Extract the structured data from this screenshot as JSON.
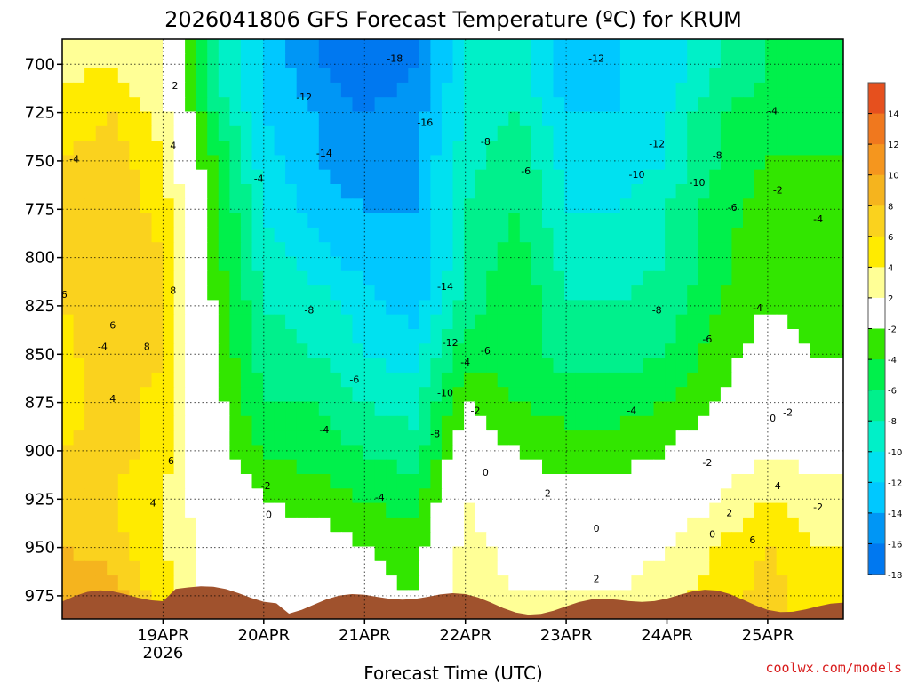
{
  "chart_data": {
    "type": "heatmap",
    "title": "2026041806 GFS Forecast Temperature (ºC) for KRUM",
    "xlabel": "Forecast Time (UTC)",
    "ylabel": "",
    "x_ticks": [
      {
        "label": "19APR",
        "sub": "2026",
        "day": 1
      },
      {
        "label": "20APR",
        "day": 2
      },
      {
        "label": "21APR",
        "day": 3
      },
      {
        "label": "22APR",
        "day": 4
      },
      {
        "label": "23APR",
        "day": 5
      },
      {
        "label": "24APR",
        "day": 6
      },
      {
        "label": "25APR",
        "day": 7
      }
    ],
    "xlim": [
      0.0,
      7.75
    ],
    "y_ticks": [
      700,
      725,
      750,
      775,
      800,
      825,
      850,
      875,
      900,
      925,
      950,
      975
    ],
    "ylim": [
      687,
      987
    ],
    "colorbar": {
      "labels": [
        "14",
        "12",
        "10",
        "8",
        "6",
        "4",
        "2",
        "-2",
        "-4",
        "-6",
        "-8",
        "-10",
        "-12",
        "-14",
        "-16",
        "-18"
      ],
      "colors": [
        "#e6501e",
        "#f0781e",
        "#f5961e",
        "#f5b41e",
        "#fad21e",
        "#ffeb00",
        "#ffff96",
        "#ffffff",
        "#32e600",
        "#00f04b",
        "#00f08c",
        "#00f0c8",
        "#00e1f0",
        "#00c8ff",
        "#0096f5",
        "#0078f0"
      ]
    },
    "temperature_grid": {
      "times": [
        0,
        0.5,
        1.0,
        1.5,
        2.0,
        2.5,
        3.0,
        3.5,
        4.0,
        4.5,
        5.0,
        5.5,
        6.0,
        6.5,
        7.0,
        7.5
      ],
      "levels": [
        700,
        725,
        750,
        775,
        800,
        825,
        850,
        875,
        900,
        925,
        950,
        975
      ],
      "values": [
        [
          3,
          4,
          2,
          -8,
          -12,
          -16,
          -18,
          -16,
          -10,
          -8,
          -14,
          -12,
          -12,
          -8,
          -6,
          -6
        ],
        [
          5,
          6,
          3,
          -6,
          -12,
          -14,
          -16,
          -15,
          -10,
          -8,
          -12,
          -12,
          -10,
          -6,
          -5,
          -5
        ],
        [
          6,
          7,
          4,
          -4,
          -11,
          -14,
          -15,
          -14,
          -9,
          -6,
          -11,
          -11,
          -10,
          -6,
          -4,
          -4
        ],
        [
          7,
          8,
          5,
          -3,
          -10,
          -13,
          -14,
          -14,
          -8,
          -6,
          -10,
          -10,
          -8,
          -5,
          -3,
          -4
        ],
        [
          6,
          8,
          6,
          -3,
          -9,
          -11,
          -13,
          -14,
          -8,
          -5,
          -9,
          -9,
          -8,
          -5,
          -2,
          -4
        ],
        [
          6,
          8,
          6,
          -2,
          -8,
          -9,
          -11,
          -13,
          -7,
          -4,
          -8,
          -8,
          -7,
          -4,
          -2,
          -3
        ],
        [
          5,
          8,
          6,
          -2,
          -7,
          -8,
          -10,
          -11,
          -5,
          -5,
          -7,
          -7,
          -6,
          -3,
          -1,
          -2
        ],
        [
          5,
          7,
          5,
          -1,
          -6,
          -6,
          -8,
          -9,
          -2,
          -4,
          -5,
          -5,
          -4,
          -2,
          0,
          -1
        ],
        [
          6,
          7,
          5,
          -1,
          -4,
          -5,
          -6,
          -7,
          0,
          -2,
          -3,
          -3,
          -2,
          0,
          2,
          1
        ],
        [
          7,
          6,
          4,
          0,
          -2,
          -3,
          -4,
          -5,
          2,
          -1,
          -1,
          -1,
          0,
          2,
          4,
          3
        ],
        [
          8,
          7,
          4,
          1,
          -1,
          0,
          -2,
          -3,
          3,
          1,
          1,
          1,
          2,
          4,
          6,
          4
        ],
        [
          10,
          9,
          5,
          1,
          1,
          2,
          -1,
          -2,
          4,
          2,
          2,
          2,
          3,
          5,
          7,
          5
        ]
      ]
    },
    "contour_labels": [
      {
        "text": "2",
        "t": 1.12,
        "p": 711
      },
      {
        "text": "4",
        "t": 1.1,
        "p": 742
      },
      {
        "text": "-4",
        "t": 0.12,
        "p": 749
      },
      {
        "text": "6",
        "t": 0.02,
        "p": 819
      },
      {
        "text": "8",
        "t": 1.1,
        "p": 817
      },
      {
        "text": "8",
        "t": 0.84,
        "p": 846
      },
      {
        "text": "-4",
        "t": 0.4,
        "p": 846
      },
      {
        "text": "6",
        "t": 0.5,
        "p": 835
      },
      {
        "text": "4",
        "t": 0.5,
        "p": 873
      },
      {
        "text": "6",
        "t": 1.08,
        "p": 905
      },
      {
        "text": "4",
        "t": 0.9,
        "p": 927
      },
      {
        "text": "-4",
        "t": 1.95,
        "p": 759
      },
      {
        "text": "-12",
        "t": 2.4,
        "p": 717
      },
      {
        "text": "-14",
        "t": 2.6,
        "p": 746
      },
      {
        "text": "-18",
        "t": 3.3,
        "p": 697
      },
      {
        "text": "-16",
        "t": 3.6,
        "p": 730
      },
      {
        "text": "-14",
        "t": 3.8,
        "p": 815
      },
      {
        "text": "-12",
        "t": 3.85,
        "p": 844
      },
      {
        "text": "-10",
        "t": 3.8,
        "p": 870
      },
      {
        "text": "-8",
        "t": 3.7,
        "p": 891
      },
      {
        "text": "-8",
        "t": 2.45,
        "p": 827
      },
      {
        "text": "-6",
        "t": 2.9,
        "p": 863
      },
      {
        "text": "-4",
        "t": 2.6,
        "p": 889
      },
      {
        "text": "-2",
        "t": 2.02,
        "p": 918
      },
      {
        "text": "0",
        "t": 2.05,
        "p": 933
      },
      {
        "text": "-4",
        "t": 3.15,
        "p": 924
      },
      {
        "text": "-8",
        "t": 4.2,
        "p": 740
      },
      {
        "text": "-6",
        "t": 4.6,
        "p": 755
      },
      {
        "text": "-6",
        "t": 4.2,
        "p": 848
      },
      {
        "text": "-4",
        "t": 4.0,
        "p": 854
      },
      {
        "text": "-2",
        "t": 4.1,
        "p": 879
      },
      {
        "text": "0",
        "t": 4.2,
        "p": 911
      },
      {
        "text": "-12",
        "t": 5.3,
        "p": 697
      },
      {
        "text": "-12",
        "t": 5.9,
        "p": 741
      },
      {
        "text": "-10",
        "t": 5.7,
        "p": 757
      },
      {
        "text": "-10",
        "t": 6.3,
        "p": 761
      },
      {
        "text": "-8",
        "t": 6.5,
        "p": 747
      },
      {
        "text": "-8",
        "t": 5.9,
        "p": 827
      },
      {
        "text": "-6",
        "t": 6.4,
        "p": 842
      },
      {
        "text": "-6",
        "t": 6.65,
        "p": 774
      },
      {
        "text": "-4",
        "t": 7.05,
        "p": 724
      },
      {
        "text": "-2",
        "t": 7.1,
        "p": 765
      },
      {
        "text": "-4",
        "t": 7.5,
        "p": 780
      },
      {
        "text": "-4",
        "t": 6.9,
        "p": 826
      },
      {
        "text": "-4",
        "t": 5.65,
        "p": 879
      },
      {
        "text": "-2",
        "t": 6.4,
        "p": 906
      },
      {
        "text": "-2",
        "t": 4.8,
        "p": 922
      },
      {
        "text": "0",
        "t": 5.3,
        "p": 940
      },
      {
        "text": "2",
        "t": 5.3,
        "p": 966
      },
      {
        "text": "0",
        "t": 6.45,
        "p": 943
      },
      {
        "text": "2",
        "t": 6.62,
        "p": 932
      },
      {
        "text": "-2",
        "t": 7.2,
        "p": 880
      },
      {
        "text": "0",
        "t": 7.05,
        "p": 883
      },
      {
        "text": "4",
        "t": 7.1,
        "p": 918
      },
      {
        "text": "-2",
        "t": 7.5,
        "p": 929
      },
      {
        "text": "6",
        "t": 6.85,
        "p": 946
      }
    ]
  },
  "credit": "coolwx.com/models"
}
